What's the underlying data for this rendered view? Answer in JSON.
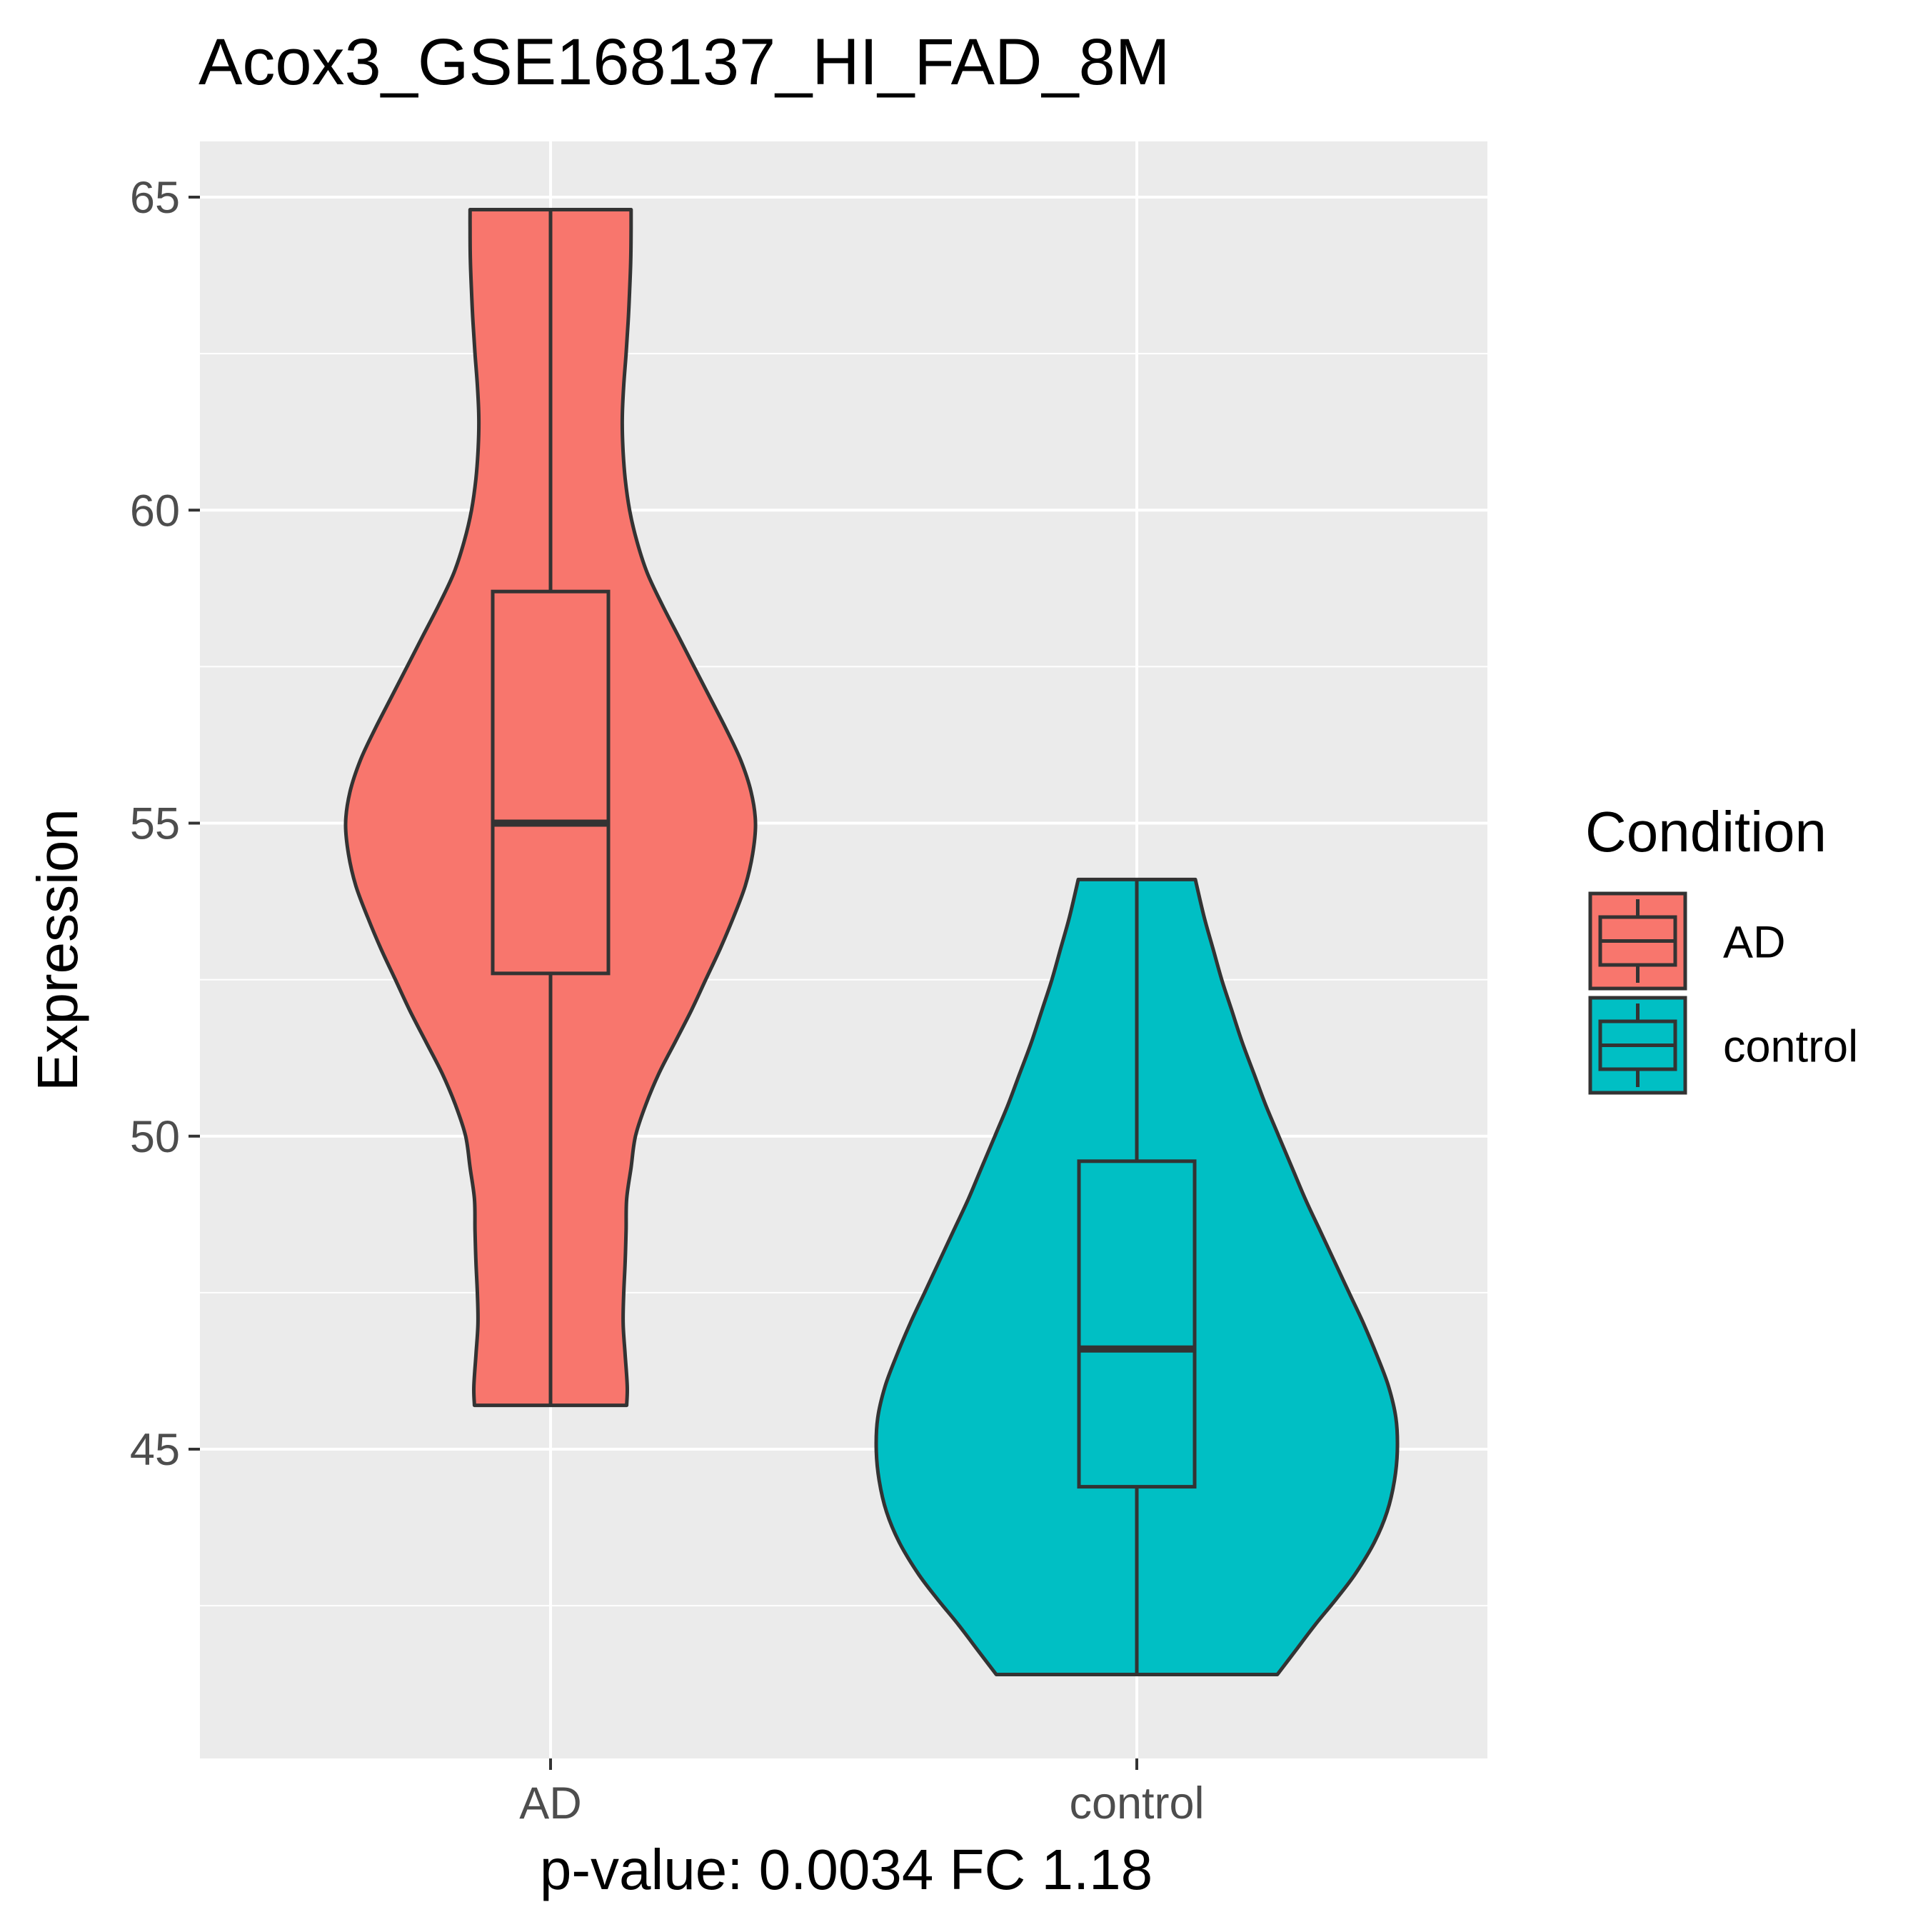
{
  "chart_data": {
    "type": "violin",
    "title": "Acox3_GSE168137_HI_FAD_8M",
    "xlabel": "p-value: 0.0034 FC 1.18",
    "ylabel": "Expression",
    "ylim": [
      40.2,
      66.0
    ],
    "y_ticks": [
      45,
      50,
      55,
      60,
      65
    ],
    "y_tick_labels": [
      "45",
      "50",
      "55",
      "60",
      "65"
    ],
    "grid": true,
    "categories": [
      "AD",
      "control"
    ],
    "legend": {
      "title": "Condition",
      "position": "right",
      "entries": [
        "AD",
        "control"
      ]
    },
    "colors": {
      "AD": "#F8766D",
      "control": "#00BFC4",
      "outline": "#333333",
      "panel": "#EBEBEB",
      "grid": "#FFFFFF"
    },
    "series": [
      {
        "name": "AD",
        "box": {
          "min": 45.7,
          "q1": 52.6,
          "median": 55.0,
          "q3": 58.7,
          "max": 64.8
        },
        "violin_profile": [
          [
            45.7,
            0.26
          ],
          [
            46.0,
            0.262
          ],
          [
            46.5,
            0.255
          ],
          [
            47.0,
            0.248
          ],
          [
            47.5,
            0.25
          ],
          [
            48.0,
            0.255
          ],
          [
            48.5,
            0.258
          ],
          [
            49.0,
            0.26
          ],
          [
            49.5,
            0.275
          ],
          [
            50.0,
            0.29
          ],
          [
            50.5,
            0.325
          ],
          [
            51.0,
            0.37
          ],
          [
            51.5,
            0.425
          ],
          [
            52.0,
            0.48
          ],
          [
            52.5,
            0.53
          ],
          [
            53.0,
            0.58
          ],
          [
            53.5,
            0.625
          ],
          [
            54.0,
            0.665
          ],
          [
            54.5,
            0.69
          ],
          [
            55.0,
            0.7
          ],
          [
            55.5,
            0.685
          ],
          [
            56.0,
            0.65
          ],
          [
            56.5,
            0.6
          ],
          [
            57.0,
            0.545
          ],
          [
            57.5,
            0.49
          ],
          [
            58.0,
            0.435
          ],
          [
            58.5,
            0.38
          ],
          [
            59.0,
            0.33
          ],
          [
            59.5,
            0.295
          ],
          [
            60.0,
            0.27
          ],
          [
            60.5,
            0.255
          ],
          [
            61.0,
            0.247
          ],
          [
            61.5,
            0.245
          ],
          [
            62.0,
            0.25
          ],
          [
            62.5,
            0.258
          ],
          [
            63.0,
            0.265
          ],
          [
            63.5,
            0.27
          ],
          [
            64.0,
            0.274
          ],
          [
            64.5,
            0.275
          ],
          [
            64.8,
            0.275
          ]
        ]
      },
      {
        "name": "control",
        "box": {
          "min": 41.4,
          "q1": 44.4,
          "median": 46.6,
          "q3": 49.6,
          "max": 54.1
        },
        "violin_profile": [
          [
            41.4,
            0.48
          ],
          [
            41.8,
            0.545
          ],
          [
            42.2,
            0.61
          ],
          [
            42.6,
            0.68
          ],
          [
            43.0,
            0.745
          ],
          [
            43.5,
            0.81
          ],
          [
            44.0,
            0.855
          ],
          [
            44.5,
            0.88
          ],
          [
            45.0,
            0.89
          ],
          [
            45.5,
            0.885
          ],
          [
            46.0,
            0.86
          ],
          [
            46.5,
            0.82
          ],
          [
            47.0,
            0.775
          ],
          [
            47.5,
            0.725
          ],
          [
            48.0,
            0.675
          ],
          [
            48.5,
            0.625
          ],
          [
            49.0,
            0.575
          ],
          [
            49.5,
            0.53
          ],
          [
            50.0,
            0.485
          ],
          [
            50.5,
            0.44
          ],
          [
            51.0,
            0.4
          ],
          [
            51.5,
            0.36
          ],
          [
            52.0,
            0.325
          ],
          [
            52.5,
            0.29
          ],
          [
            53.0,
            0.26
          ],
          [
            53.5,
            0.23
          ],
          [
            54.1,
            0.2
          ]
        ]
      }
    ]
  }
}
